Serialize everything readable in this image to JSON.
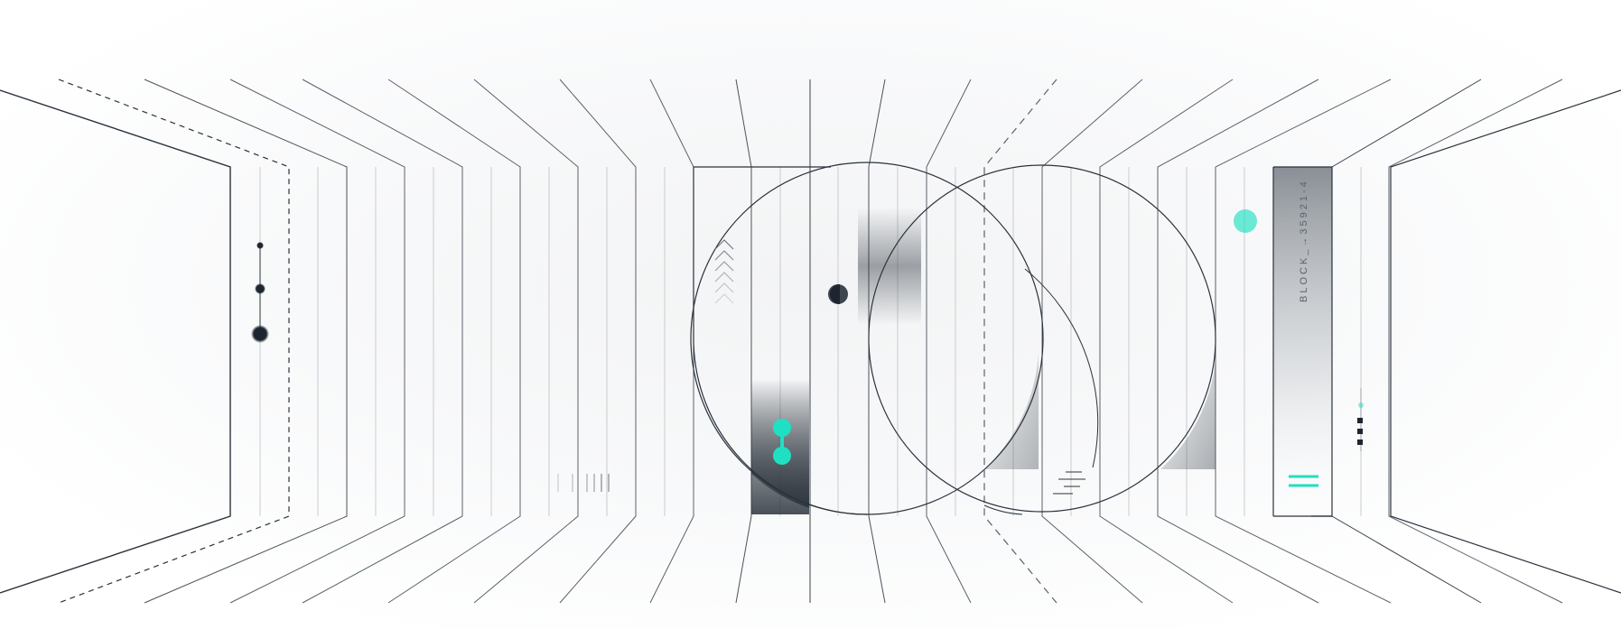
{
  "illustration": {
    "block_label": "BLOCK_→35921-4",
    "colors": {
      "line": "#2a323b",
      "line_light": "#9aa1a8",
      "accent": "#1fe0c2",
      "dark": "#1e2630",
      "panel": "#7d838a"
    },
    "icons": [
      "chevron-stack-icon",
      "barbell-icon",
      "dot-cluster-icon",
      "double-bar-icon"
    ]
  }
}
